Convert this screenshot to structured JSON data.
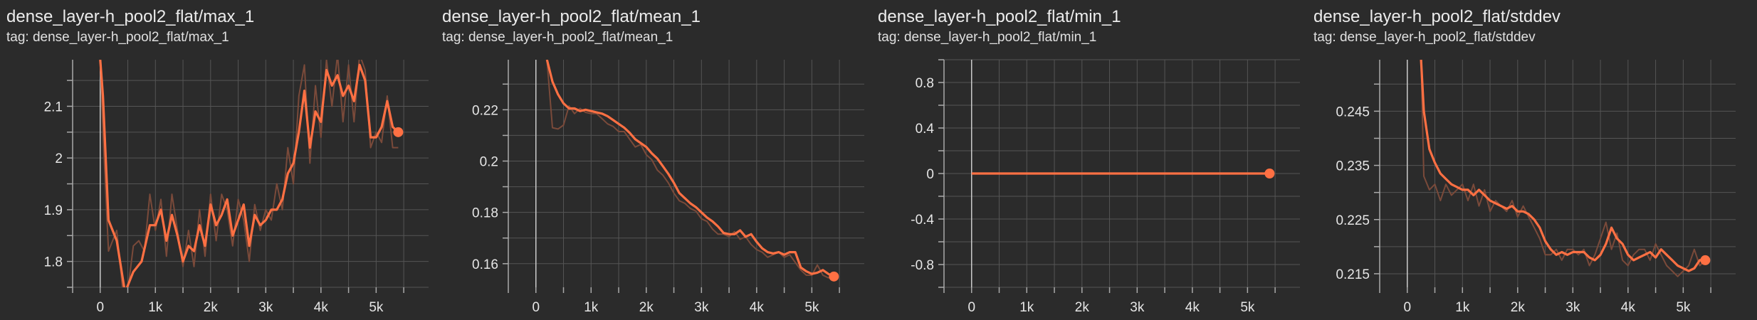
{
  "colors": {
    "background": "#2b2b2b",
    "grid": "#555555",
    "axis": "#aaaaaa",
    "zero_line": "#cccccc",
    "smoothed": "#ff7043",
    "raw": "#7a4a3a"
  },
  "chart_data": [
    {
      "type": "line",
      "title": "dense_layer-h_pool2_flat/max_1",
      "tag": "tag: dense_layer-h_pool2_flat/max_1",
      "x_ticks": [
        0,
        1000,
        2000,
        3000,
        4000,
        5000
      ],
      "x_tick_labels": [
        "0",
        "1k",
        "2k",
        "3k",
        "4k",
        "5k"
      ],
      "y_ticks": [
        1.8,
        1.9,
        2.0,
        2.1
      ],
      "y_tick_labels": [
        "1.8",
        "1.9",
        "2",
        "2.1"
      ],
      "xlim": [
        -500,
        5950
      ],
      "ylim": [
        1.75,
        2.19
      ],
      "series": [
        {
          "role": "smoothed",
          "x": [
            0,
            50,
            150,
            300,
            450,
            600,
            750,
            900,
            1000,
            1100,
            1200,
            1300,
            1400,
            1500,
            1600,
            1700,
            1800,
            1900,
            2000,
            2100,
            2200,
            2300,
            2400,
            2500,
            2600,
            2700,
            2800,
            2900,
            3000,
            3100,
            3200,
            3300,
            3400,
            3500,
            3600,
            3700,
            3800,
            3900,
            4000,
            4100,
            4200,
            4300,
            4400,
            4500,
            4600,
            4700,
            4800,
            4900,
            5000,
            5100,
            5200,
            5300,
            5400
          ],
          "y": [
            2.19,
            2.12,
            1.88,
            1.84,
            1.74,
            1.78,
            1.8,
            1.87,
            1.87,
            1.9,
            1.84,
            1.89,
            1.85,
            1.8,
            1.83,
            1.82,
            1.87,
            1.83,
            1.91,
            1.87,
            1.89,
            1.92,
            1.85,
            1.88,
            1.91,
            1.83,
            1.89,
            1.87,
            1.88,
            1.9,
            1.9,
            1.92,
            1.97,
            1.99,
            2.05,
            2.13,
            2.02,
            2.09,
            2.07,
            2.17,
            2.14,
            2.16,
            2.12,
            2.14,
            2.11,
            2.18,
            2.15,
            2.04,
            2.04,
            2.06,
            2.11,
            2.06,
            2.05
          ]
        },
        {
          "role": "raw",
          "x": [
            0,
            50,
            150,
            300,
            450,
            600,
            700,
            800,
            900,
            1000,
            1100,
            1200,
            1300,
            1400,
            1500,
            1600,
            1700,
            1800,
            1900,
            2000,
            2100,
            2200,
            2300,
            2400,
            2500,
            2600,
            2700,
            2800,
            2900,
            3000,
            3100,
            3200,
            3300,
            3400,
            3500,
            3600,
            3700,
            3800,
            3900,
            4000,
            4100,
            4200,
            4300,
            4400,
            4500,
            4600,
            4700,
            4800,
            4900,
            5000,
            5100,
            5200,
            5300,
            5400
          ],
          "y": [
            2.19,
            2.05,
            1.82,
            1.86,
            1.7,
            1.83,
            1.84,
            1.82,
            1.93,
            1.86,
            1.92,
            1.81,
            1.93,
            1.86,
            1.79,
            1.86,
            1.79,
            1.9,
            1.81,
            1.93,
            1.84,
            1.93,
            1.9,
            1.83,
            1.92,
            1.88,
            1.8,
            1.91,
            1.86,
            1.9,
            1.88,
            1.95,
            1.9,
            2.02,
            1.95,
            2.12,
            2.18,
            1.99,
            2.14,
            2.04,
            2.19,
            2.1,
            2.2,
            2.07,
            2.18,
            2.07,
            2.2,
            2.17,
            2.02,
            2.05,
            2.03,
            2.12,
            2.02,
            2.02
          ]
        }
      ],
      "last_point": {
        "x": 5400,
        "y": 2.05
      }
    },
    {
      "type": "line",
      "title": "dense_layer-h_pool2_flat/mean_1",
      "tag": "tag: dense_layer-h_pool2_flat/mean_1",
      "x_ticks": [
        0,
        1000,
        2000,
        3000,
        4000,
        5000
      ],
      "x_tick_labels": [
        "0",
        "1k",
        "2k",
        "3k",
        "4k",
        "5k"
      ],
      "y_ticks": [
        0.16,
        0.18,
        0.2,
        0.22
      ],
      "y_tick_labels": [
        "0.16",
        "0.18",
        "0.2",
        "0.22"
      ],
      "xlim": [
        -500,
        5950
      ],
      "ylim": [
        0.1508,
        0.2395
      ],
      "series": [
        {
          "role": "smoothed",
          "x": [
            200,
            300,
            400,
            500,
            600,
            700,
            800,
            900,
            1000,
            1100,
            1200,
            1300,
            1400,
            1500,
            1600,
            1700,
            1800,
            1900,
            2000,
            2100,
            2200,
            2300,
            2400,
            2500,
            2600,
            2700,
            2800,
            2900,
            3000,
            3100,
            3200,
            3300,
            3400,
            3500,
            3600,
            3700,
            3800,
            3900,
            4000,
            4100,
            4200,
            4300,
            4400,
            4500,
            4600,
            4700,
            4800,
            4900,
            5000,
            5100,
            5200,
            5300,
            5400
          ],
          "y": [
            0.2395,
            0.231,
            0.226,
            0.2225,
            0.2205,
            0.2205,
            0.2195,
            0.22,
            0.2195,
            0.219,
            0.2185,
            0.2175,
            0.216,
            0.2145,
            0.213,
            0.211,
            0.2085,
            0.207,
            0.2055,
            0.203,
            0.201,
            0.198,
            0.195,
            0.1915,
            0.1875,
            0.1855,
            0.1835,
            0.182,
            0.18,
            0.178,
            0.1765,
            0.1745,
            0.172,
            0.1715,
            0.1715,
            0.173,
            0.1705,
            0.1715,
            0.1685,
            0.166,
            0.1645,
            0.164,
            0.1645,
            0.1635,
            0.1645,
            0.1645,
            0.1585,
            0.157,
            0.156,
            0.1565,
            0.1575,
            0.156,
            0.155
          ]
        },
        {
          "role": "raw",
          "x": [
            200,
            300,
            400,
            500,
            600,
            700,
            800,
            900,
            1000,
            1100,
            1200,
            1300,
            1400,
            1500,
            1600,
            1700,
            1800,
            1900,
            2000,
            2100,
            2200,
            2300,
            2400,
            2500,
            2600,
            2700,
            2800,
            2900,
            3000,
            3100,
            3200,
            3300,
            3400,
            3500,
            3600,
            3700,
            3800,
            3900,
            4000,
            4100,
            4200,
            4300,
            4400,
            4500,
            4600,
            4700,
            4800,
            4900,
            5000,
            5100,
            5200,
            5300,
            5400
          ],
          "y": [
            0.2395,
            0.213,
            0.2125,
            0.214,
            0.2215,
            0.2185,
            0.2205,
            0.219,
            0.2185,
            0.2185,
            0.2165,
            0.2145,
            0.2135,
            0.2115,
            0.2115,
            0.2085,
            0.2055,
            0.2065,
            0.2025,
            0.2005,
            0.1965,
            0.1945,
            0.1915,
            0.1875,
            0.1845,
            0.1835,
            0.1815,
            0.1805,
            0.1775,
            0.1765,
            0.1735,
            0.1715,
            0.1715,
            0.1705,
            0.1725,
            0.1695,
            0.1705,
            0.1675,
            0.1655,
            0.1645,
            0.1625,
            0.1635,
            0.1645,
            0.1625,
            0.1635,
            0.1605,
            0.1575,
            0.1555,
            0.1555,
            0.1595,
            0.1555,
            0.1545,
            0.155
          ]
        }
      ],
      "last_point": {
        "x": 5400,
        "y": 0.155
      }
    },
    {
      "type": "line",
      "title": "dense_layer-h_pool2_flat/min_1",
      "tag": "tag: dense_layer-h_pool2_flat/min_1",
      "x_ticks": [
        0,
        1000,
        2000,
        3000,
        4000,
        5000
      ],
      "x_tick_labels": [
        "0",
        "1k",
        "2k",
        "3k",
        "4k",
        "5k"
      ],
      "y_ticks": [
        -0.8,
        -0.4,
        0,
        0.4,
        0.8
      ],
      "y_tick_labels": [
        "-0.8",
        "-0.4",
        "0",
        "0.4",
        "0.8"
      ],
      "xlim": [
        -500,
        5950
      ],
      "ylim": [
        -1.0,
        1.0
      ],
      "series": [
        {
          "role": "smoothed",
          "x": [
            0,
            5400
          ],
          "y": [
            0,
            0
          ]
        }
      ],
      "last_point": {
        "x": 5400,
        "y": 0
      }
    },
    {
      "type": "line",
      "title": "dense_layer-h_pool2_flat/stddev",
      "tag": "tag: dense_layer-h_pool2_flat/stddev",
      "x_ticks": [
        0,
        1000,
        2000,
        3000,
        4000,
        5000
      ],
      "x_tick_labels": [
        "0",
        "1k",
        "2k",
        "3k",
        "4k",
        "5k"
      ],
      "y_ticks": [
        0.215,
        0.225,
        0.235,
        0.245
      ],
      "y_tick_labels": [
        "0.215",
        "0.225",
        "0.235",
        "0.245"
      ],
      "xlim": [
        -500,
        5950
      ],
      "ylim": [
        0.2125,
        0.2545
      ],
      "series": [
        {
          "role": "smoothed",
          "x": [
            250,
            300,
            400,
            500,
            600,
            700,
            800,
            900,
            1000,
            1100,
            1200,
            1300,
            1400,
            1500,
            1600,
            1700,
            1800,
            1900,
            2000,
            2100,
            2200,
            2300,
            2400,
            2500,
            2600,
            2700,
            2800,
            2900,
            3000,
            3100,
            3200,
            3300,
            3400,
            3500,
            3600,
            3700,
            3800,
            3900,
            4000,
            4100,
            4200,
            4300,
            4400,
            4500,
            4600,
            4700,
            4800,
            4900,
            5000,
            5100,
            5200,
            5300,
            5400
          ],
          "y": [
            0.2545,
            0.245,
            0.238,
            0.2355,
            0.2335,
            0.2325,
            0.2315,
            0.231,
            0.2305,
            0.2305,
            0.2295,
            0.2305,
            0.2295,
            0.2285,
            0.228,
            0.2275,
            0.227,
            0.2275,
            0.2265,
            0.2265,
            0.226,
            0.225,
            0.2235,
            0.221,
            0.2195,
            0.2185,
            0.219,
            0.2185,
            0.219,
            0.219,
            0.219,
            0.218,
            0.2175,
            0.2185,
            0.2205,
            0.2235,
            0.2215,
            0.2205,
            0.2185,
            0.2175,
            0.218,
            0.2185,
            0.219,
            0.218,
            0.2195,
            0.2185,
            0.2175,
            0.2165,
            0.216,
            0.2155,
            0.216,
            0.2175,
            0.2175
          ]
        },
        {
          "role": "raw",
          "x": [
            250,
            300,
            400,
            500,
            600,
            700,
            800,
            900,
            1000,
            1100,
            1200,
            1300,
            1400,
            1500,
            1600,
            1700,
            1800,
            1900,
            2000,
            2100,
            2200,
            2300,
            2400,
            2500,
            2600,
            2700,
            2800,
            2900,
            3000,
            3100,
            3200,
            3300,
            3400,
            3500,
            3600,
            3700,
            3800,
            3900,
            4000,
            4100,
            4200,
            4300,
            4400,
            4500,
            4600,
            4700,
            4800,
            4900,
            5000,
            5100,
            5200,
            5300,
            5400
          ],
          "y": [
            0.2545,
            0.233,
            0.2305,
            0.2315,
            0.2285,
            0.2315,
            0.2295,
            0.2305,
            0.2315,
            0.2285,
            0.2315,
            0.2275,
            0.2305,
            0.2265,
            0.2285,
            0.2275,
            0.2265,
            0.2285,
            0.2255,
            0.2275,
            0.2255,
            0.2235,
            0.2215,
            0.2185,
            0.2185,
            0.2195,
            0.2175,
            0.2195,
            0.2195,
            0.2185,
            0.2195,
            0.2165,
            0.2185,
            0.2215,
            0.2245,
            0.2195,
            0.2225,
            0.2175,
            0.2165,
            0.2185,
            0.2195,
            0.2195,
            0.2175,
            0.2205,
            0.2185,
            0.2165,
            0.2155,
            0.2145,
            0.2155,
            0.2165,
            0.2195,
            0.2165,
            0.2175
          ]
        }
      ],
      "last_point": {
        "x": 5400,
        "y": 0.2175
      }
    }
  ]
}
